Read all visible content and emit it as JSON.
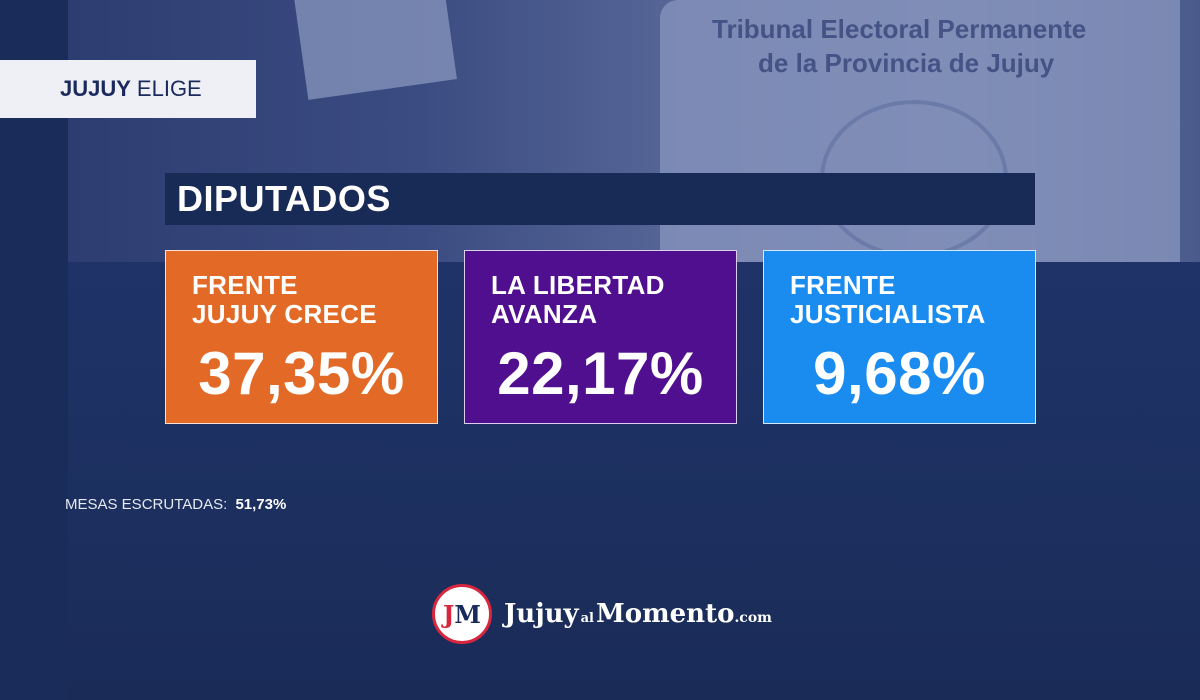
{
  "brand_tag": {
    "bold": "JUJUY",
    "rest": "ELIGE"
  },
  "background": {
    "box_text_line1": "Tribunal Electoral Permanente",
    "box_text_line2": "de la Provincia de Jujuy"
  },
  "section_title": "DIPUTADOS",
  "results": [
    {
      "party": "FRENTE\nJUJUY CRECE",
      "percent": "37,35%",
      "color": "#e26a26"
    },
    {
      "party": "LA LIBERTAD\nAVANZA",
      "percent": "22,17%",
      "color": "#4f0f8f"
    },
    {
      "party": "FRENTE\nJUSTICIALISTA",
      "percent": "9,68%",
      "color": "#1a8cf0"
    }
  ],
  "mesas": {
    "label": "MESAS ESCRUTADAS:",
    "value": "51,73%"
  },
  "logo": {
    "badge_j": "J",
    "badge_m": "M",
    "word1": "Jujuy",
    "word_al": "al",
    "word2": "Momento",
    "word_com": ".com"
  }
}
